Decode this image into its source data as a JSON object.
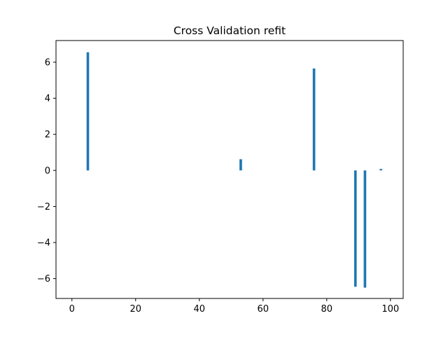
{
  "chart_data": {
    "type": "bar",
    "title": "Cross Validation refit",
    "xlabel": "",
    "ylabel": "",
    "xlim": [
      -5,
      104
    ],
    "ylim": [
      -7.1,
      7.2
    ],
    "xticks": [
      0,
      20,
      40,
      60,
      80,
      100
    ],
    "yticks": [
      -6,
      -4,
      -2,
      0,
      2,
      4,
      6
    ],
    "x": [
      5,
      53,
      76,
      89,
      92,
      97
    ],
    "values": [
      6.55,
      0.62,
      5.65,
      -6.45,
      -6.5,
      0.08
    ],
    "bar_color": "#1f77b4",
    "grid": false,
    "legend": "none"
  }
}
